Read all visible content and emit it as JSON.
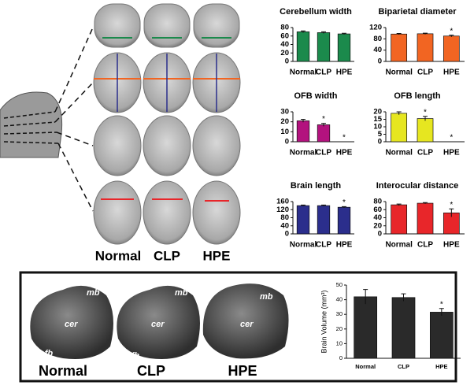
{
  "chart_data": [
    {
      "type": "bar",
      "title": "Cerebellum width",
      "categories": [
        "Normal",
        "CLP",
        "HPE"
      ],
      "values": [
        70,
        68,
        65
      ],
      "errors": [
        2,
        2,
        1.5
      ],
      "color": "#1b8a4c",
      "ylim": [
        0,
        80
      ],
      "yticks": [
        0,
        20,
        40,
        60,
        80
      ]
    },
    {
      "type": "bar",
      "title": "Biparietal diameter",
      "categories": [
        "Normal",
        "CLP",
        "HPE"
      ],
      "values": [
        97,
        98,
        90
      ],
      "errors": [
        2,
        2,
        3
      ],
      "color": "#f26522",
      "ylim": [
        0,
        120
      ],
      "yticks": [
        0,
        40,
        80,
        120
      ],
      "annotations": [
        {
          "text": "*",
          "category": "HPE"
        }
      ]
    },
    {
      "type": "bar",
      "title": "OFB width",
      "categories": [
        "Normal",
        "CLP",
        "HPE"
      ],
      "values": [
        21,
        17,
        0
      ],
      "errors": [
        1.5,
        1.5,
        0
      ],
      "color": "#b3127e",
      "ylim": [
        0,
        30
      ],
      "yticks": [
        0,
        10,
        20,
        30
      ],
      "annotations": [
        {
          "text": "*",
          "category": "CLP"
        },
        {
          "text": "*",
          "category": "HPE"
        }
      ]
    },
    {
      "type": "bar",
      "title": "OFB length",
      "categories": [
        "Normal",
        "CLP",
        "HPE"
      ],
      "values": [
        19,
        15.5,
        0
      ],
      "errors": [
        1,
        1.5,
        0
      ],
      "color": "#e6e620",
      "ylim": [
        0,
        20
      ],
      "yticks": [
        0,
        5,
        10,
        15,
        20
      ],
      "annotations": [
        {
          "text": "*",
          "category": "CLP"
        },
        {
          "text": "*",
          "category": "HPE"
        }
      ]
    },
    {
      "type": "bar",
      "title": "Brain length",
      "categories": [
        "Normal",
        "CLP",
        "HPE"
      ],
      "values": [
        140,
        140,
        132
      ],
      "errors": [
        3,
        3,
        3
      ],
      "color": "#2b2e8c",
      "ylim": [
        0,
        160
      ],
      "yticks": [
        0,
        40,
        80,
        120,
        160
      ],
      "annotations": [
        {
          "text": "*",
          "category": "HPE"
        }
      ]
    },
    {
      "type": "bar",
      "title": "Interocular distance",
      "categories": [
        "Normal",
        "CLP",
        "HPE"
      ],
      "values": [
        72,
        76,
        52
      ],
      "errors": [
        2,
        1.5,
        10
      ],
      "color": "#e8262a",
      "ylim": [
        0,
        80
      ],
      "yticks": [
        0,
        20,
        40,
        60,
        80
      ],
      "annotations": [
        {
          "text": "*",
          "category": "HPE"
        }
      ]
    },
    {
      "type": "bar",
      "ylabel": "Brain Volume (mm³)",
      "categories": [
        "Normal",
        "CLP",
        "HPE"
      ],
      "values": [
        42,
        41.5,
        31.5
      ],
      "errors": [
        5,
        2.5,
        2.5
      ],
      "color": "#2a2a2a",
      "ylim": [
        0,
        50
      ],
      "yticks": [
        0,
        10,
        20,
        30,
        40,
        50
      ],
      "annotations": [
        {
          "text": "*",
          "category": "HPE"
        }
      ]
    }
  ],
  "slices": {
    "labels": [
      "Normal",
      "CLP",
      "HPE"
    ]
  },
  "renders": {
    "labels": [
      "Normal",
      "CLP",
      "HPE"
    ],
    "parts": {
      "mb": "mb",
      "cer": "cer",
      "ofb": "ofb"
    }
  }
}
